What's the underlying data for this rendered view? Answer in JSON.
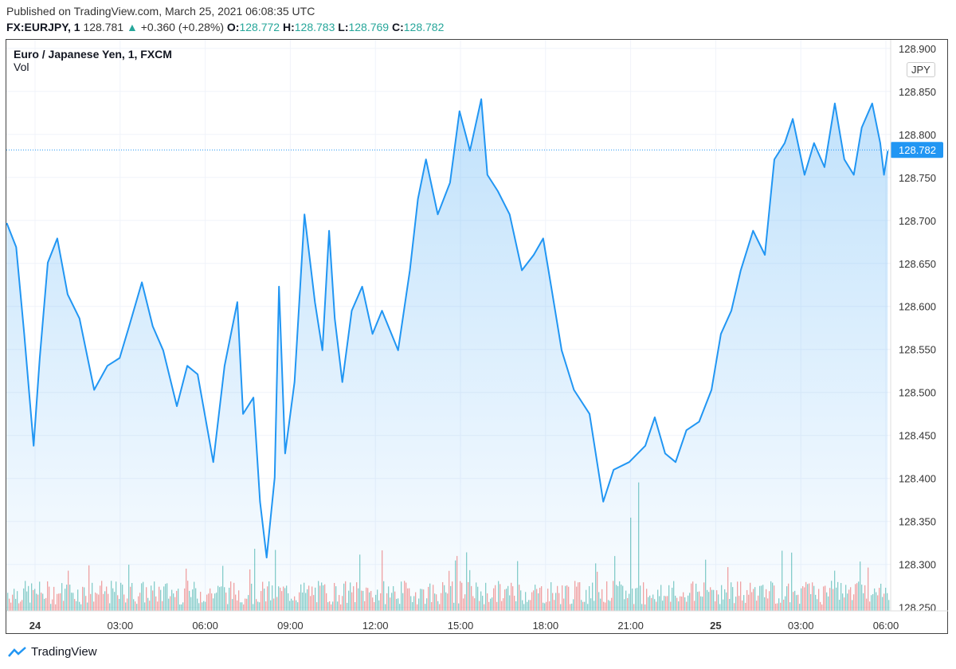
{
  "header": {
    "published": "Published on TradingView.com, March 25, 2021 06:08:35 UTC",
    "symbol": "FX:EURJPY, 1",
    "last": "128.781",
    "change": "+0.360 (+0.28%)",
    "o_label": "O:",
    "o": "128.772",
    "h_label": "H:",
    "h": "128.783",
    "l_label": "L:",
    "l": "128.769",
    "c_label": "C:",
    "c": "128.782"
  },
  "legend": {
    "title": "Euro / Japanese Yen, 1, FXCM",
    "vol": "Vol"
  },
  "currency_button": "JPY",
  "footer": {
    "brand": "TradingView"
  },
  "colors": {
    "line": "#2196f3",
    "up": "#26a69a",
    "down": "#ef5350"
  },
  "chart_data": {
    "type": "area",
    "ylim": [
      128.246,
      128.91
    ],
    "y_ticks": [
      "128.900",
      "128.850",
      "128.800",
      "128.750",
      "128.700",
      "128.650",
      "128.600",
      "128.550",
      "128.500",
      "128.450",
      "128.400",
      "128.350",
      "128.300",
      "128.250"
    ],
    "x_ticks": [
      "24",
      "03:00",
      "06:00",
      "09:00",
      "12:00",
      "15:00",
      "18:00",
      "21:00",
      "25",
      "03:00",
      "06:00"
    ],
    "last_price_label": "128.782",
    "series": [
      [
        "03-23 23:00",
        128.697
      ],
      [
        "03-23 23:20",
        128.669
      ],
      [
        "03-23 23:37",
        128.568
      ],
      [
        "03-23 23:57",
        128.438
      ],
      [
        "03-24 00:10",
        128.54
      ],
      [
        "03-24 00:27",
        128.651
      ],
      [
        "03-24 00:47",
        128.679
      ],
      [
        "03-24 01:09",
        128.614
      ],
      [
        "03-24 01:34",
        128.586
      ],
      [
        "03-24 02:05",
        128.503
      ],
      [
        "03-24 02:33",
        128.531
      ],
      [
        "03-24 02:59",
        128.54
      ],
      [
        "03-24 03:19",
        128.577
      ],
      [
        "03-24 03:46",
        128.628
      ],
      [
        "03-24 04:09",
        128.577
      ],
      [
        "03-24 04:31",
        128.549
      ],
      [
        "03-24 05:00",
        128.484
      ],
      [
        "03-24 05:22",
        128.531
      ],
      [
        "03-24 05:44",
        128.521
      ],
      [
        "03-24 06:17",
        128.419
      ],
      [
        "03-24 06:41",
        128.531
      ],
      [
        "03-24 07:08",
        128.605
      ],
      [
        "03-24 07:20",
        128.475
      ],
      [
        "03-24 07:42",
        128.494
      ],
      [
        "03-24 07:56",
        128.373
      ],
      [
        "03-24 08:10",
        128.308
      ],
      [
        "03-24 08:27",
        128.401
      ],
      [
        "03-24 08:36",
        128.623
      ],
      [
        "03-24 08:49",
        128.429
      ],
      [
        "03-24 09:09",
        128.512
      ],
      [
        "03-24 09:30",
        128.707
      ],
      [
        "03-24 09:52",
        128.605
      ],
      [
        "03-24 10:08",
        128.549
      ],
      [
        "03-24 10:22",
        128.688
      ],
      [
        "03-24 10:34",
        128.586
      ],
      [
        "03-24 10:50",
        128.512
      ],
      [
        "03-24 11:10",
        128.595
      ],
      [
        "03-24 11:32",
        128.623
      ],
      [
        "03-24 11:54",
        128.568
      ],
      [
        "03-24 12:14",
        128.595
      ],
      [
        "03-24 12:48",
        128.549
      ],
      [
        "03-24 13:13",
        128.642
      ],
      [
        "03-24 13:30",
        128.725
      ],
      [
        "03-24 13:47",
        128.771
      ],
      [
        "03-24 14:12",
        128.707
      ],
      [
        "03-24 14:38",
        128.744
      ],
      [
        "03-24 14:58",
        128.827
      ],
      [
        "03-24 15:20",
        128.781
      ],
      [
        "03-24 15:44",
        128.841
      ],
      [
        "03-24 15:57",
        128.753
      ],
      [
        "03-24 16:19",
        128.734
      ],
      [
        "03-24 16:44",
        128.707
      ],
      [
        "03-24 17:10",
        128.642
      ],
      [
        "03-24 17:35",
        128.66
      ],
      [
        "03-24 17:55",
        128.679
      ],
      [
        "03-24 18:12",
        128.623
      ],
      [
        "03-24 18:34",
        128.549
      ],
      [
        "03-24 19:00",
        128.503
      ],
      [
        "03-24 19:33",
        128.475
      ],
      [
        "03-24 20:02",
        128.373
      ],
      [
        "03-24 20:24",
        128.41
      ],
      [
        "03-24 20:57",
        128.419
      ],
      [
        "03-24 21:31",
        128.438
      ],
      [
        "03-24 21:51",
        128.471
      ],
      [
        "03-24 22:13",
        128.429
      ],
      [
        "03-24 22:35",
        128.419
      ],
      [
        "03-24 22:58",
        128.456
      ],
      [
        "03-24 23:25",
        128.466
      ],
      [
        "03-24 23:51",
        128.503
      ],
      [
        "03-25 00:11",
        128.568
      ],
      [
        "03-25 00:33",
        128.595
      ],
      [
        "03-25 00:53",
        128.642
      ],
      [
        "03-25 01:19",
        128.688
      ],
      [
        "03-25 01:44",
        128.66
      ],
      [
        "03-25 02:04",
        128.771
      ],
      [
        "03-25 02:26",
        128.79
      ],
      [
        "03-25 02:43",
        128.818
      ],
      [
        "03-25 03:08",
        128.753
      ],
      [
        "03-25 03:28",
        128.79
      ],
      [
        "03-25 03:50",
        128.762
      ],
      [
        "03-25 04:12",
        128.836
      ],
      [
        "03-25 04:32",
        128.771
      ],
      [
        "03-25 04:52",
        128.753
      ],
      [
        "03-25 05:09",
        128.808
      ],
      [
        "03-25 05:31",
        128.836
      ],
      [
        "03-25 05:48",
        128.79
      ],
      [
        "03-25 05:56",
        128.753
      ],
      [
        "03-25 06:04",
        128.781
      ]
    ]
  }
}
